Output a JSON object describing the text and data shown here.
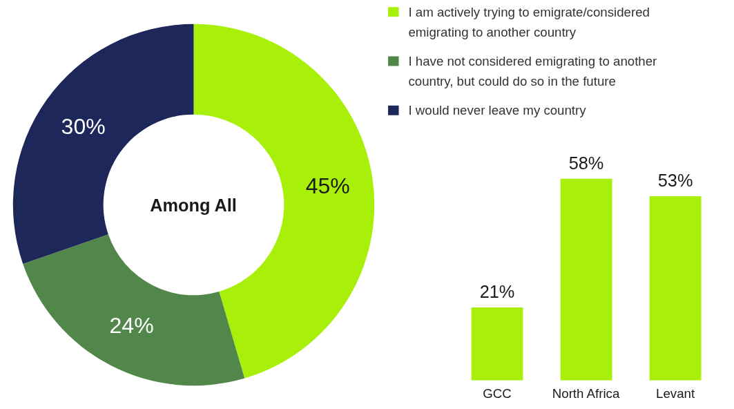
{
  "chart_data": [
    {
      "type": "donut",
      "title": "Among All",
      "categories": [
        "I am actively trying to emigrate/considered emigrating to another country",
        "I have not considered emigrating to another country, but could do so in the future",
        "I would never leave my country"
      ],
      "values": [
        45,
        24,
        30
      ],
      "colors": [
        "#a8f00a",
        "#52874b",
        "#1e2759"
      ],
      "value_labels": [
        "45%",
        "24%",
        "30%"
      ],
      "legend": "right"
    },
    {
      "type": "bar",
      "categories": [
        "GCC",
        "North Africa",
        "Levant"
      ],
      "values": [
        21,
        58,
        53
      ],
      "color": "#a8f00a",
      "value_labels": [
        "21%",
        "58%",
        "53%"
      ]
    }
  ]
}
